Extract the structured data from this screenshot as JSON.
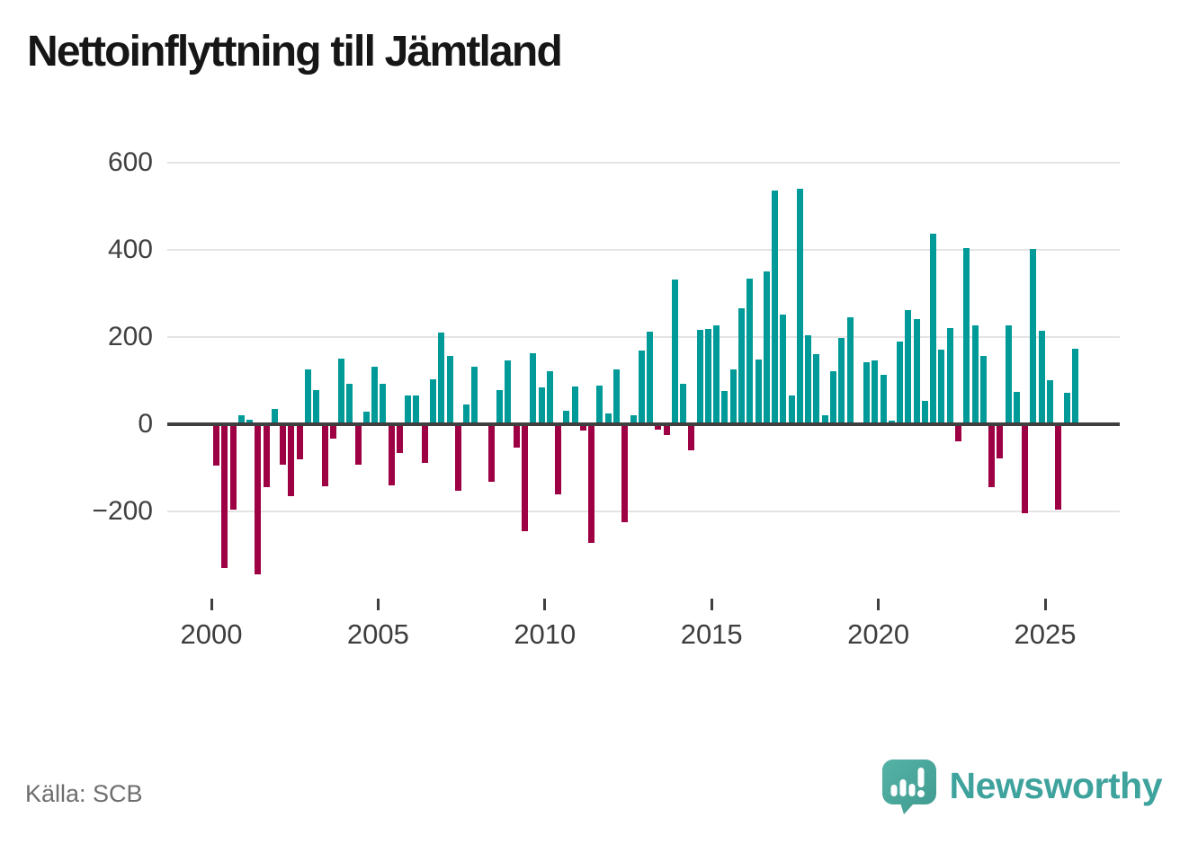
{
  "title": "Nettoinflyttning till Jämtland",
  "source": "Källa: SCB",
  "logo": {
    "text": "Newsworthy"
  },
  "colors": {
    "positive": "#009a99",
    "negative": "#9e0044",
    "zero_line": "#3f3f3f",
    "gridline": "#e4e4e4",
    "axis_text": "#3d3d3d",
    "title_text": "#161616",
    "source_text": "#6e6e6e",
    "logo_text": "#3ea29d",
    "logo_bubble_dark": "#3f998f",
    "logo_bubble_light": "#55b3a6"
  },
  "chart_data": {
    "type": "bar",
    "title": "Nettoinflyttning till Jämtland",
    "xlabel": "",
    "ylabel": "",
    "frequency": "quarterly",
    "start_period": "2000Q1",
    "end_period": "2025Q4",
    "grid": "horizontal",
    "legend": "none",
    "ylim": [
      -380,
      620
    ],
    "y_ticks": [
      {
        "value": 600,
        "label": "600"
      },
      {
        "value": 400,
        "label": "400"
      },
      {
        "value": 200,
        "label": "200"
      },
      {
        "value": 0,
        "label": "0"
      },
      {
        "value": -200,
        "label": "−200"
      }
    ],
    "x_ticks": [
      {
        "year": 2000,
        "label": "2000"
      },
      {
        "year": 2005,
        "label": "2005"
      },
      {
        "year": 2010,
        "label": "2010"
      },
      {
        "year": 2015,
        "label": "2015"
      },
      {
        "year": 2020,
        "label": "2020"
      },
      {
        "year": 2025,
        "label": "2025"
      }
    ],
    "values": [
      -95,
      -330,
      -195,
      20,
      10,
      -345,
      -145,
      35,
      -93,
      -165,
      -80,
      125,
      78,
      -143,
      -33,
      150,
      92,
      -92,
      29,
      133,
      92,
      -141,
      -67,
      67,
      65,
      -88,
      104,
      210,
      156,
      -152,
      45,
      131,
      0,
      -131,
      78,
      146,
      -53,
      -245,
      163,
      85,
      122,
      -160,
      31,
      87,
      -15,
      -272,
      89,
      24,
      126,
      -225,
      20,
      170,
      212,
      -13,
      -25,
      331,
      93,
      -60,
      217,
      218,
      226,
      76,
      126,
      266,
      334,
      148,
      350,
      536,
      251,
      65,
      540,
      204,
      160,
      20,
      122,
      198,
      245,
      0,
      142,
      146,
      113,
      8,
      190,
      262,
      241,
      54,
      437,
      172,
      220,
      -40,
      405,
      226,
      157,
      -145,
      -78,
      226,
      75,
      -205,
      402,
      215,
      101,
      -195,
      72,
      173
    ]
  }
}
